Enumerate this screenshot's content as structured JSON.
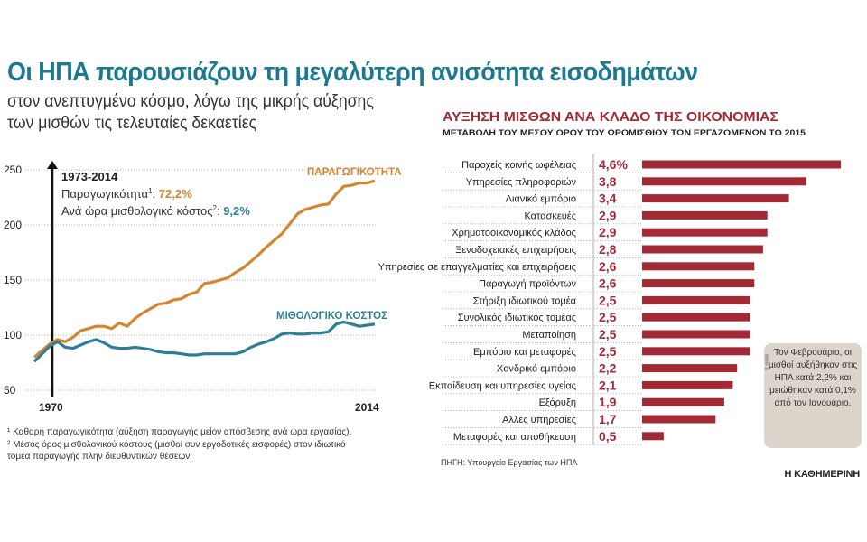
{
  "header": {
    "title": "Οι ΗΠΑ παρουσιάζουν τη μεγαλύτερη ανισότητα εισοδημάτων",
    "subtitle_line1": "στον ανεπτυγμένο κόσμο, λόγω της μικρής αύξησης",
    "subtitle_line2": "των μισθών τις τελευταίες δεκαετίες"
  },
  "chart_data": [
    {
      "type": "line",
      "xlabel": "",
      "ylabel": "",
      "x": [
        1970,
        1971,
        1972,
        1973,
        1974,
        1975,
        1976,
        1977,
        1978,
        1979,
        1980,
        1981,
        1982,
        1983,
        1984,
        1985,
        1986,
        1987,
        1988,
        1989,
        1990,
        1991,
        1992,
        1993,
        1994,
        1995,
        1996,
        1997,
        1998,
        1999,
        2000,
        2001,
        2002,
        2003,
        2004,
        2005,
        2006,
        2007,
        2008,
        2009,
        2010,
        2011,
        2012,
        2013,
        2014
      ],
      "xlim": [
        1970,
        2014
      ],
      "ylim": [
        50,
        250
      ],
      "yticks": [
        50,
        100,
        150,
        200,
        250
      ],
      "xtick_labels": [
        "1970",
        "2014"
      ],
      "series": [
        {
          "name": "ΠΑΡΑΓΩΓΙΚΟΤΗΤΑ",
          "color": "#d4862f",
          "values": [
            80,
            86,
            92,
            96,
            94,
            98,
            104,
            106,
            108,
            108,
            106,
            111,
            108,
            115,
            120,
            124,
            128,
            129,
            132,
            133,
            137,
            139,
            147,
            148,
            150,
            152,
            157,
            161,
            167,
            173,
            180,
            186,
            192,
            201,
            210,
            214,
            216,
            218,
            219,
            228,
            235,
            236,
            238,
            238,
            240
          ]
        },
        {
          "name": "ΜΙΘΟΛΟΓΙΚΟ ΚΟΣΤΟΣ",
          "color": "#2e7f95",
          "values": [
            76,
            83,
            90,
            94,
            89,
            88,
            91,
            94,
            96,
            93,
            89,
            88,
            88,
            89,
            88,
            87,
            85,
            84,
            84,
            83,
            82,
            82,
            83,
            83,
            83,
            83,
            83,
            85,
            89,
            92,
            94,
            97,
            101,
            102,
            101,
            101,
            102,
            102,
            103,
            110,
            112,
            110,
            108,
            109,
            110
          ]
        }
      ],
      "annotation": {
        "period": "1973-2014",
        "productivity_label": "Παραγωγικότητα",
        "productivity_sup": "1",
        "productivity_value": "72,2%",
        "cost_label": "Ανά ώρα μισθολογικό κόστος",
        "cost_sup": "2",
        "cost_value": "9,2%"
      }
    },
    {
      "type": "bar",
      "orientation": "horizontal",
      "title": "ΑΥΞΗΣΗ ΜΙΣΘΩΝ ΑΝΑ ΚΛΑΔΟ ΤΗΣ ΟΙΚΟΝΟΜΙΑΣ",
      "subtitle": "ΜΕΤΑΒΟΛΗ ΤΟΥ ΜΕΣΟΥ ΟΡΟΥ ΤΟΥ ΩΡΟΜΙΣΘΙΟΥ ΤΩΝ ΕΡΓΑΖΟΜΕΝΩΝ ΤΟ 2015",
      "color": "#a32a35",
      "xlim": [
        0,
        4.6
      ],
      "categories": [
        "Παροχείς κοινής ωφέλειας",
        "Υπηρεσίες πληροφοριών",
        "Λιανικό εμπόριο",
        "Κατασκευές",
        "Χρηματοοικονομικός κλάδος",
        "Ξενοδοχειακές επιχειρήσεις",
        "Υπηρεσίες σε επαγγελματίες και επιχειρήσεις",
        "Παραγωγή προϊόντων",
        "Στήριξη ιδιωτικού τομέα",
        "Συνολικός ιδιωτικός τομέας",
        "Μεταποίηση",
        "Εμπόριο και μεταφορές",
        "Χονδρικό εμπόριο",
        "Εκπαίδευση και υπηρεσίες υγείας",
        "Εξόρυξη",
        "Αλλες υπηρεσίες",
        "Μεταφορές και αποθήκευση"
      ],
      "values": [
        4.6,
        3.8,
        3.4,
        2.9,
        2.9,
        2.8,
        2.6,
        2.6,
        2.5,
        2.5,
        2.5,
        2.5,
        2.2,
        2.1,
        1.9,
        1.7,
        0.5
      ],
      "value_labels": [
        "4,6%",
        "3,8",
        "3,4",
        "2,9",
        "2,9",
        "2,8",
        "2,6",
        "2,6",
        "2,5",
        "2,5",
        "2,5",
        "2,5",
        "2,2",
        "2,1",
        "1,9",
        "1,7",
        "0,5"
      ]
    }
  ],
  "footnotes": {
    "fn1": "¹ Καθαρή παραγωγικότητα (αύξηση παραγωγής μείον απόσβεσης ανά ώρα εργασίας).",
    "fn2_line1": "² Μέσος όρος μισθολογικού κόστους (μισθοί συν εργοδοτικές εισφορές) στον ιδιωτικό",
    "fn2_line2": "τομέα παραγωγής πλην διευθυντικών θέσεων."
  },
  "note": {
    "icon": "exclamation-icon",
    "text": "Τον Φεβρουάριο, οι μισθοί αυξήθηκαν στις ΗΠΑ κατά 2,2% και μειώθηκαν κατά 0,1% από τον Ιανουάριο."
  },
  "source": "ΠΗΓΗ: Υπουργείο Εργασίας των ΗΠΑ",
  "logo": "Η ΚΑΘΗΜΕΡΙΝΗ"
}
